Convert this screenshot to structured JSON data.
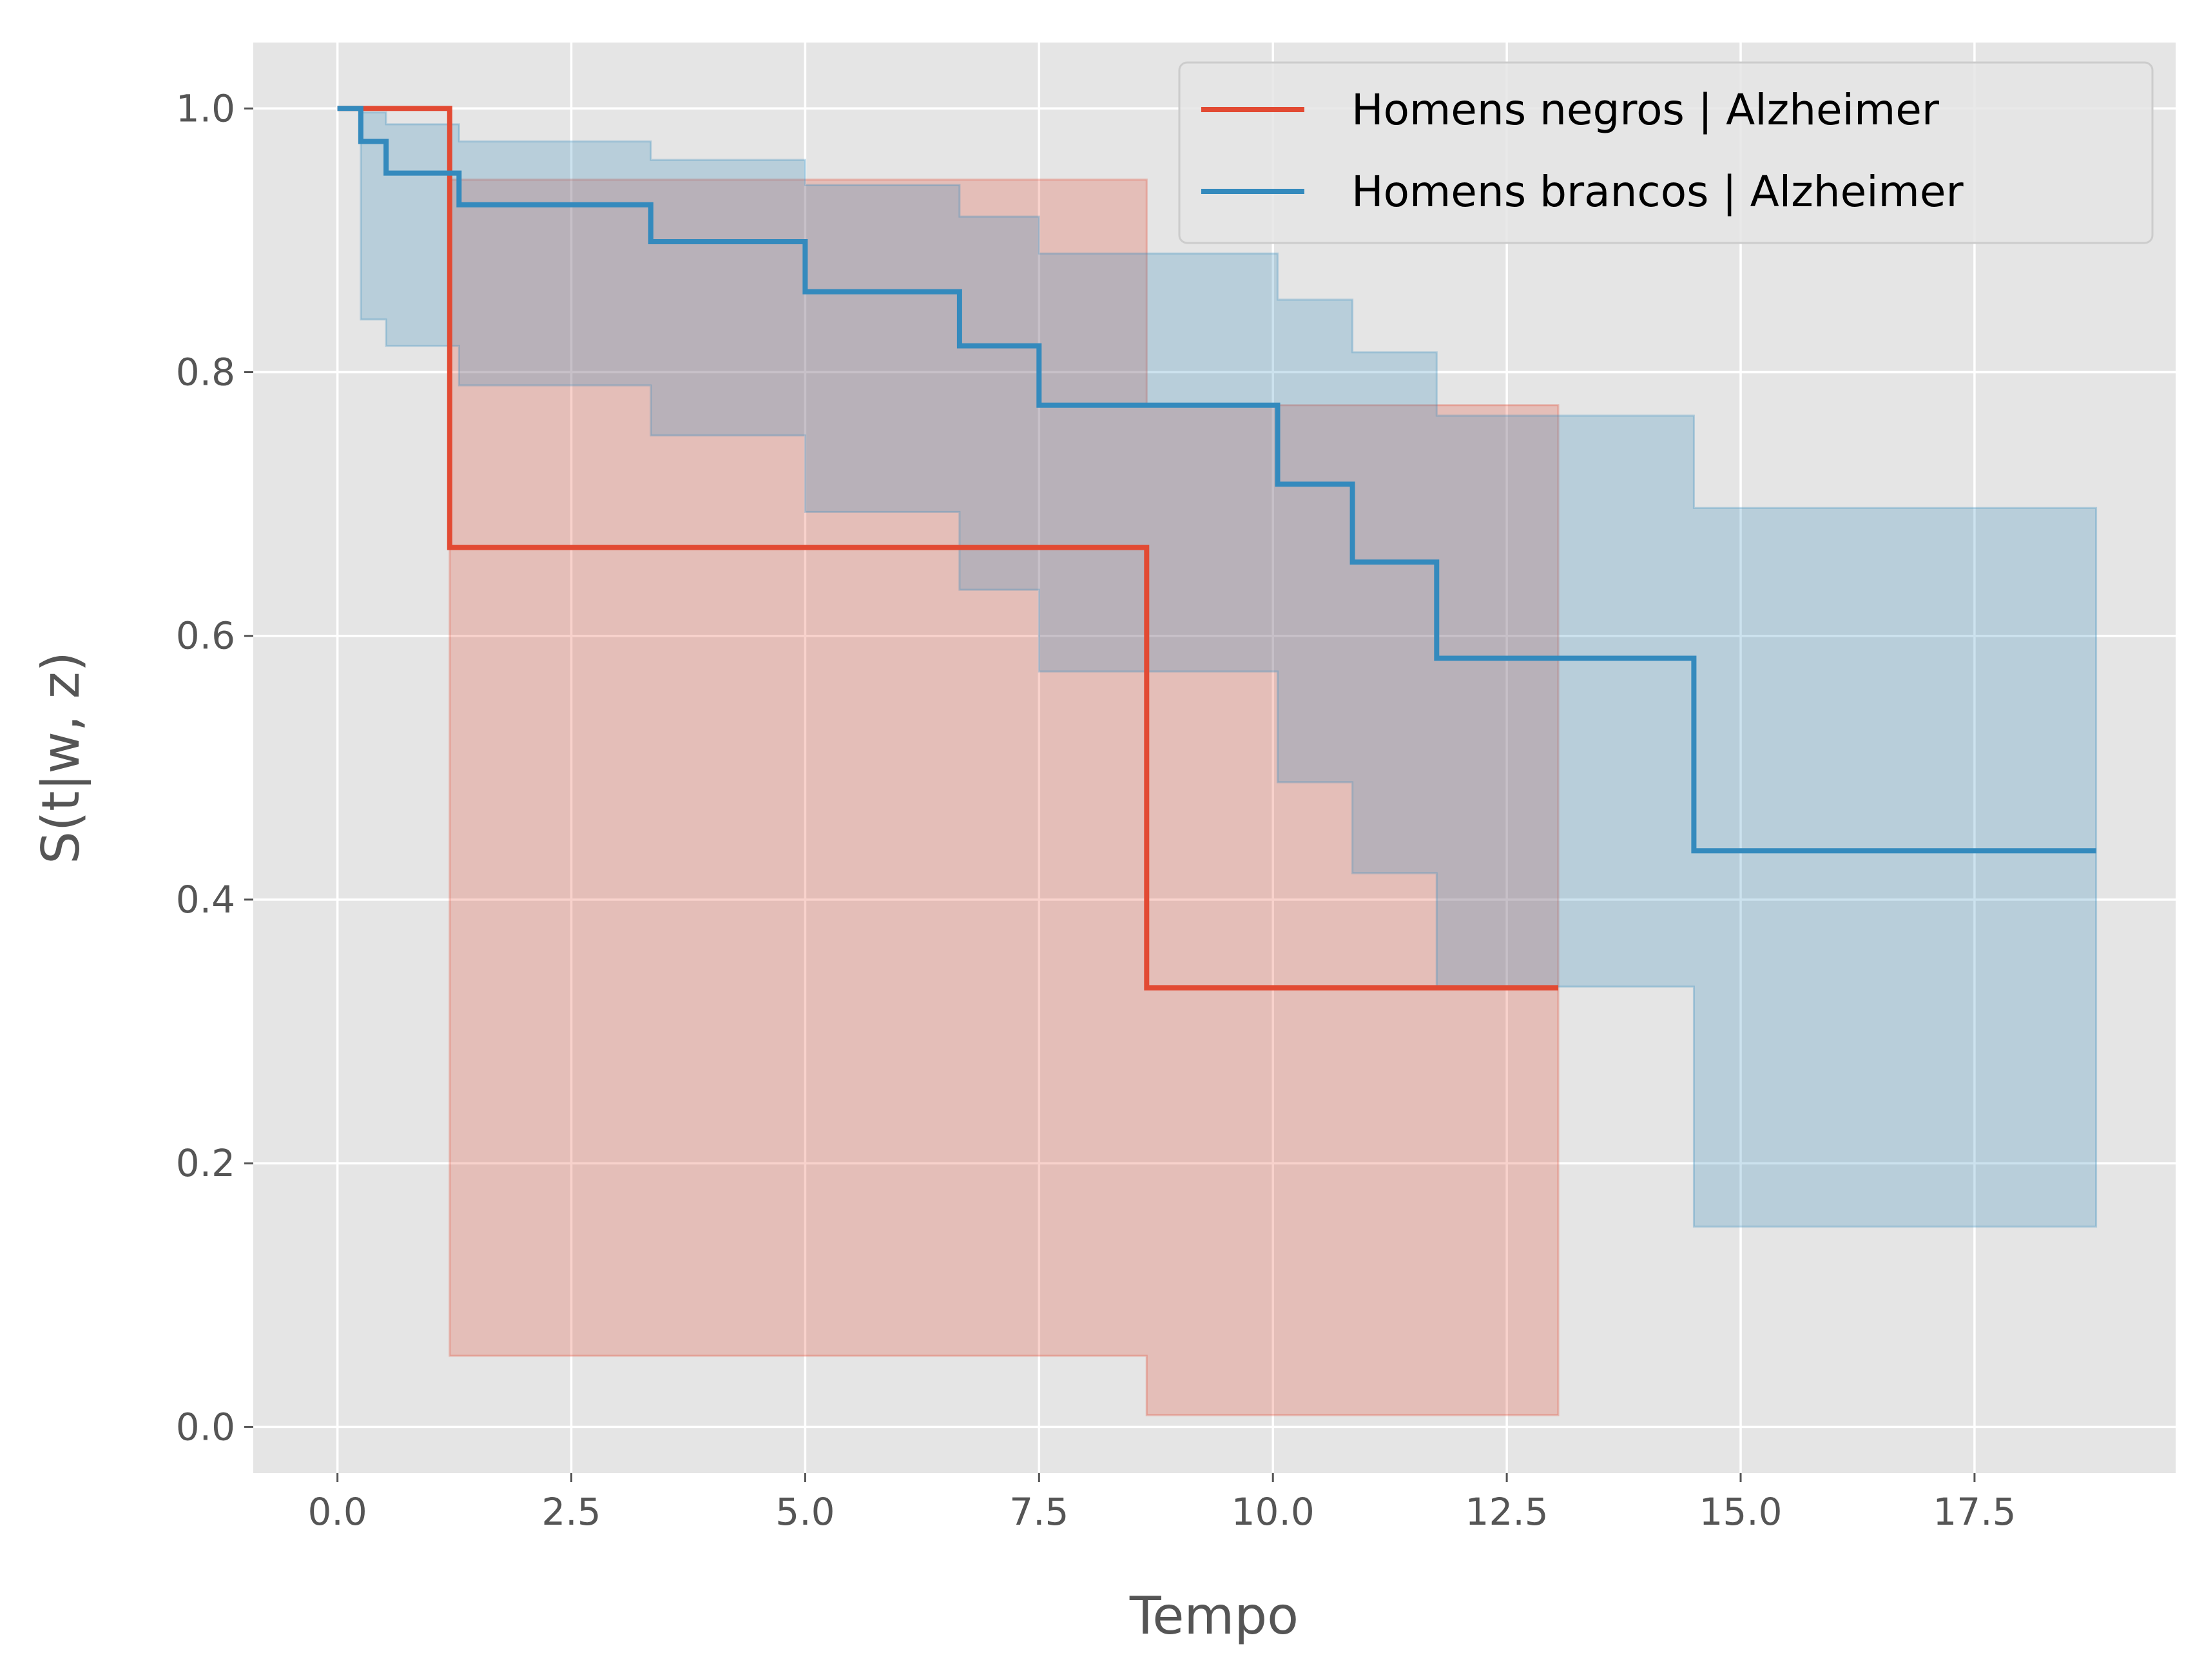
{
  "chart_data": {
    "type": "line",
    "step": "post",
    "title": "",
    "xlabel": "Tempo",
    "ylabel": "S(t|w, z)",
    "xlim": [
      -0.9,
      19.65
    ],
    "ylim": [
      -0.035,
      1.05
    ],
    "xticks": [
      0.0,
      2.5,
      5.0,
      7.5,
      10.0,
      12.5,
      15.0,
      17.5
    ],
    "xtick_labels": [
      "0.0",
      "2.5",
      "5.0",
      "7.5",
      "10.0",
      "12.5",
      "15.0",
      "17.5"
    ],
    "yticks": [
      0.0,
      0.2,
      0.4,
      0.6,
      0.8,
      1.0
    ],
    "ytick_labels": [
      "0.0",
      "0.2",
      "0.4",
      "0.6",
      "0.8",
      "1.0"
    ],
    "grid": true,
    "legend_position": "top-right",
    "background": "#e5e5e5",
    "series": [
      {
        "name": "Homens negros | Alzheimer",
        "color": "#e24a33",
        "x": [
          0.0,
          1.2,
          8.65,
          13.05
        ],
        "y": [
          1.0,
          0.667,
          0.333,
          0.333
        ],
        "ci_lower": [
          1.0,
          0.054,
          0.009,
          0.009
        ],
        "ci_upper": [
          1.0,
          0.946,
          0.775,
          0.775
        ]
      },
      {
        "name": "Homens brancos | Alzheimer",
        "color": "#348abd",
        "x": [
          0.0,
          0.25,
          0.52,
          1.3,
          3.35,
          5.0,
          6.65,
          7.5,
          10.05,
          10.85,
          11.75,
          14.5,
          18.8
        ],
        "y": [
          1.0,
          0.975,
          0.951,
          0.927,
          0.899,
          0.861,
          0.82,
          0.775,
          0.715,
          0.656,
          0.583,
          0.437,
          0.437
        ],
        "ci_lower": [
          1.0,
          0.84,
          0.82,
          0.79,
          0.752,
          0.694,
          0.635,
          0.573,
          0.489,
          0.42,
          0.334,
          0.152,
          0.152
        ],
        "ci_upper": [
          1.0,
          0.997,
          0.988,
          0.975,
          0.961,
          0.942,
          0.918,
          0.89,
          0.855,
          0.815,
          0.767,
          0.697,
          0.697
        ]
      }
    ]
  }
}
